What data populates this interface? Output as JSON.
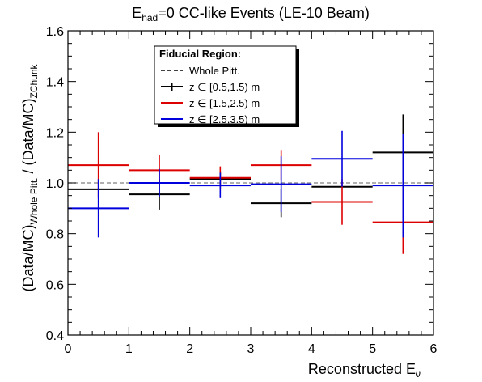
{
  "chart_data": {
    "type": "scatter",
    "title": {
      "main": "E",
      "sub": "had",
      "rest": "=0 CC-like Events (LE-10 Beam)"
    },
    "xlabel": {
      "main": "Reconstructed E",
      "sub": "ν"
    },
    "ylabel": {
      "a": "(Data/MC)",
      "a_sub": "Whole Pitt.",
      "b": " / (Data/MC)",
      "b_sub": "ZChunk"
    },
    "xlim": [
      0,
      6
    ],
    "ylim": [
      0.4,
      1.6
    ],
    "x_ticks": [
      "0",
      "1",
      "2",
      "3",
      "4",
      "5",
      "6"
    ],
    "y_ticks": [
      "0.4",
      "0.6",
      "0.8",
      "1.0",
      "1.2",
      "1.4",
      "1.6"
    ],
    "reference_line": {
      "y": 1.0,
      "label": "Whole Pitt.",
      "style": "dashed",
      "color": "#808080"
    },
    "legend": {
      "title": "Fiducial Region:",
      "placement": "top-center",
      "entries": [
        "Whole Pitt.",
        "z ∈ [0.5,1.5) m",
        "z ∈ [1.5,2.5) m",
        "z ∈ [2.5,3.5) m"
      ]
    },
    "series": [
      {
        "name": "z ∈ [0.5,1.5) m",
        "color": "#000000",
        "points": [
          {
            "x": 0.5,
            "y": 0.975,
            "xerr": 0.5,
            "ylo": 0.975,
            "yhi": 0.975
          },
          {
            "x": 1.5,
            "y": 0.955,
            "xerr": 0.5,
            "ylo": 0.895,
            "yhi": 1.015
          },
          {
            "x": 2.5,
            "y": 1.015,
            "xerr": 0.5,
            "ylo": 0.985,
            "yhi": 1.045
          },
          {
            "x": 3.5,
            "y": 0.92,
            "xerr": 0.5,
            "ylo": 0.865,
            "yhi": 0.975
          },
          {
            "x": 4.5,
            "y": 0.985,
            "xerr": 0.5,
            "ylo": 0.985,
            "yhi": 0.985
          },
          {
            "x": 5.5,
            "y": 1.12,
            "xerr": 0.5,
            "ylo": 0.97,
            "yhi": 1.27
          }
        ]
      },
      {
        "name": "z ∈ [1.5,2.5) m",
        "color": "#dd0000",
        "points": [
          {
            "x": 0.5,
            "y": 1.07,
            "xerr": 0.5,
            "ylo": 0.94,
            "yhi": 1.2
          },
          {
            "x": 1.5,
            "y": 1.05,
            "xerr": 0.5,
            "ylo": 0.99,
            "yhi": 1.11
          },
          {
            "x": 2.5,
            "y": 1.02,
            "xerr": 0.5,
            "ylo": 0.975,
            "yhi": 1.065
          },
          {
            "x": 3.5,
            "y": 1.07,
            "xerr": 0.5,
            "ylo": 1.01,
            "yhi": 1.13
          },
          {
            "x": 4.5,
            "y": 0.925,
            "xerr": 0.5,
            "ylo": 0.835,
            "yhi": 1.015
          },
          {
            "x": 5.5,
            "y": 0.845,
            "xerr": 0.5,
            "ylo": 0.72,
            "yhi": 0.97
          }
        ]
      },
      {
        "name": "z ∈ [2.5,3.5) m",
        "color": "#0000dd",
        "points": [
          {
            "x": 0.5,
            "y": 0.9,
            "xerr": 0.5,
            "ylo": 0.785,
            "yhi": 1.015
          },
          {
            "x": 1.5,
            "y": 1.0,
            "xerr": 0.5,
            "ylo": 0.945,
            "yhi": 1.055
          },
          {
            "x": 2.5,
            "y": 0.99,
            "xerr": 0.5,
            "ylo": 0.94,
            "yhi": 1.04
          },
          {
            "x": 3.5,
            "y": 0.995,
            "xerr": 0.5,
            "ylo": 0.885,
            "yhi": 1.105
          },
          {
            "x": 4.5,
            "y": 1.095,
            "xerr": 0.5,
            "ylo": 0.985,
            "yhi": 1.205
          },
          {
            "x": 5.5,
            "y": 0.99,
            "xerr": 0.5,
            "ylo": 0.785,
            "yhi": 1.195
          }
        ]
      }
    ]
  }
}
